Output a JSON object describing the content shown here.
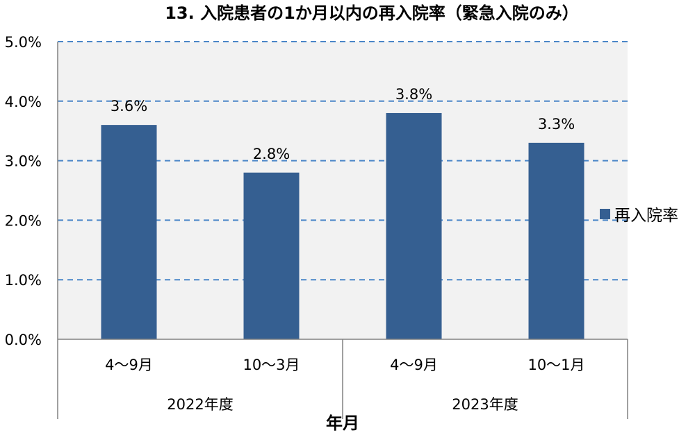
{
  "chart_data": {
    "type": "bar",
    "title": "13. 入院患者の1か月以内の再入院率（緊急入院のみ）",
    "xlabel": "年月",
    "ylabel": "",
    "groups": [
      {
        "label": "2022年度",
        "categories": [
          "4～9月",
          "10～3月"
        ]
      },
      {
        "label": "2023年度",
        "categories": [
          "4～9月",
          "10～1月"
        ]
      }
    ],
    "categories": [
      "4～9月",
      "10～3月",
      "4～9月",
      "10～1月"
    ],
    "series": [
      {
        "name": "再入院率",
        "values": [
          3.6,
          2.8,
          3.8,
          3.3
        ],
        "color": "#355F91"
      }
    ],
    "data_labels": [
      "3.6%",
      "2.8%",
      "3.8%",
      "3.3%"
    ],
    "yticks": [
      "0.0%",
      "1.0%",
      "2.0%",
      "3.0%",
      "4.0%",
      "5.0%"
    ],
    "ylim": [
      0,
      5
    ],
    "grid": true,
    "legend": "right",
    "colors": {
      "bar": "#355F91",
      "plot_bg": "#F2F2F2",
      "grid": "#4A86C8"
    }
  }
}
